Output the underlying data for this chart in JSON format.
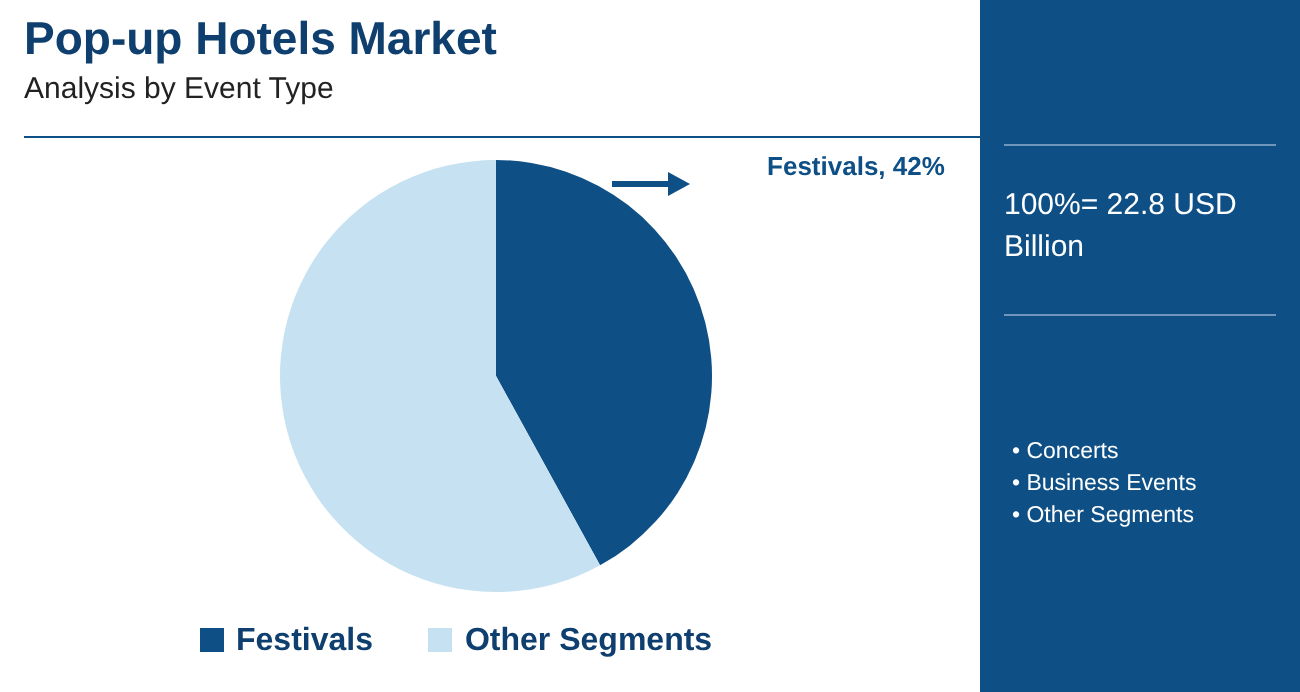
{
  "chart_data": {
    "type": "pie",
    "title": "Pop-up Hotels Market",
    "subtitle": "Analysis by Event Type",
    "categories": [
      "Festivals",
      "Other Segments"
    ],
    "values": [
      42,
      58
    ],
    "colors": [
      "#0e4f86",
      "#c6e1f1"
    ],
    "value_labels": [
      "Festivals, 42%",
      null
    ],
    "legend": "bottom",
    "annotations": [
      "100%= 22.8 USD Billion",
      "• Concerts",
      "• Business Events",
      "• Other Segments"
    ]
  }
}
